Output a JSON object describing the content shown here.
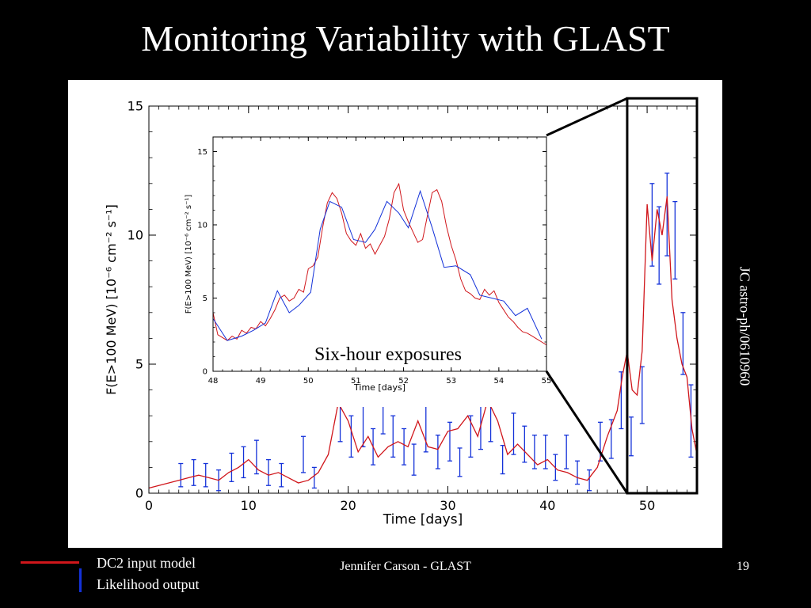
{
  "slide": {
    "title": "Monitoring Variability with GLAST",
    "side_reference": "JC astro-ph/0610960",
    "footer": "Jennifer Carson - GLAST",
    "slide_number": "19",
    "legend": [
      {
        "label": "DC2 input model",
        "color": "#d0161b"
      },
      {
        "label": "Likelihood output",
        "color": "#1432d9"
      }
    ]
  },
  "chart_data": [
    {
      "type": "line",
      "xlabel": "Time [days]",
      "ylabel": "F(E>100 MeV) [10⁻⁶ cm⁻² s⁻¹]",
      "xlim": [
        0,
        55
      ],
      "ylim": [
        0,
        15
      ],
      "xticks": [
        "0",
        "10",
        "20",
        "30",
        "40",
        "50"
      ],
      "yticks": [
        "0",
        "5",
        "10",
        "15"
      ],
      "series": [
        {
          "name": "DC2 input model",
          "color": "#d0161b",
          "x": [
            0,
            1,
            2,
            3,
            4,
            5,
            6,
            7,
            8,
            9,
            10,
            11,
            12,
            13,
            14,
            15,
            16,
            17,
            18,
            19,
            20,
            21,
            22,
            23,
            24,
            25,
            26,
            27,
            28,
            29,
            30,
            31,
            32,
            33,
            34,
            35,
            36,
            37,
            38,
            39,
            40,
            41,
            42,
            43,
            44,
            45,
            46,
            47,
            47.5,
            48,
            48.5,
            49,
            49.5,
            50,
            50.5,
            51,
            51.5,
            52,
            52.5,
            53,
            53.5,
            54,
            54.5,
            55
          ],
          "y": [
            0.2,
            0.3,
            0.4,
            0.5,
            0.6,
            0.7,
            0.6,
            0.5,
            0.8,
            1.0,
            1.3,
            0.9,
            0.7,
            0.8,
            0.6,
            0.4,
            0.5,
            0.8,
            1.5,
            3.5,
            2.8,
            1.6,
            2.2,
            1.4,
            1.8,
            2.0,
            1.8,
            2.8,
            1.8,
            1.7,
            2.4,
            2.5,
            3.0,
            2.2,
            3.6,
            2.8,
            1.5,
            1.9,
            1.5,
            1.1,
            1.3,
            0.9,
            0.8,
            0.6,
            0.5,
            1.0,
            2.2,
            3.2,
            4.5,
            5.5,
            4.0,
            3.8,
            5.5,
            11.2,
            9.0,
            11.0,
            10.0,
            11.5,
            7.5,
            6.0,
            5.0,
            4.5,
            2.5,
            1.5
          ]
        },
        {
          "name": "Likelihood output",
          "color": "#1432d9",
          "x": [
            3.2,
            4.5,
            5.7,
            7.0,
            8.3,
            9.5,
            10.8,
            12.0,
            13.3,
            15.5,
            16.6,
            19.2,
            20.3,
            21.5,
            22.5,
            23.5,
            24.5,
            25.6,
            26.6,
            27.8,
            29.0,
            30.2,
            31.2,
            32.3,
            33.3,
            34.3,
            35.5,
            36.6,
            37.7,
            38.7,
            39.8,
            40.8,
            41.9,
            43.0,
            44.2,
            45.3,
            46.4,
            47.4,
            48.4,
            49.5,
            50.5,
            51.2,
            52.0,
            52.8,
            53.6,
            54.4
          ],
          "y": [
            0.7,
            0.8,
            0.7,
            0.5,
            1.0,
            1.2,
            1.4,
            0.8,
            0.7,
            1.5,
            0.6,
            3.1,
            2.2,
            2.7,
            1.8,
            3.4,
            2.2,
            1.8,
            1.3,
            2.5,
            1.6,
            2.0,
            1.2,
            2.2,
            2.6,
            3.0,
            1.3,
            2.3,
            1.9,
            1.6,
            1.6,
            1.0,
            1.6,
            0.8,
            0.5,
            2.0,
            2.1,
            3.6,
            2.2,
            3.8,
            10.4,
            9.6,
            10.8,
            9.8,
            5.8,
            2.8
          ],
          "yerr": [
            0.45,
            0.5,
            0.45,
            0.4,
            0.55,
            0.6,
            0.65,
            0.5,
            0.45,
            0.7,
            0.4,
            1.1,
            0.8,
            0.9,
            0.7,
            1.1,
            0.8,
            0.7,
            0.6,
            0.9,
            0.65,
            0.75,
            0.55,
            0.8,
            0.9,
            1.0,
            0.55,
            0.8,
            0.7,
            0.65,
            0.65,
            0.5,
            0.65,
            0.45,
            0.4,
            0.75,
            0.75,
            1.1,
            0.75,
            1.1,
            1.6,
            1.5,
            1.6,
            1.5,
            1.2,
            1.4
          ]
        }
      ]
    },
    {
      "type": "line",
      "annotation": "Six-hour exposures",
      "xlabel": "Time [days]",
      "ylabel": "F(E>100 MeV) [10⁻⁶ cm⁻² s⁻¹]",
      "xlim": [
        48,
        55
      ],
      "ylim": [
        0,
        16
      ],
      "xticks": [
        "48",
        "49",
        "50",
        "51",
        "52",
        "53",
        "54",
        "55"
      ],
      "yticks": [
        "0",
        "5",
        "10",
        "15"
      ],
      "series": [
        {
          "name": "DC2 input model",
          "color": "#d0161b",
          "x": [
            48.0,
            48.1,
            48.2,
            48.3,
            48.4,
            48.5,
            48.6,
            48.7,
            48.8,
            48.9,
            49.0,
            49.1,
            49.2,
            49.3,
            49.4,
            49.5,
            49.6,
            49.7,
            49.8,
            49.9,
            50.0,
            50.1,
            50.2,
            50.3,
            50.4,
            50.5,
            50.6,
            50.7,
            50.8,
            50.9,
            51.0,
            51.1,
            51.2,
            51.3,
            51.4,
            51.5,
            51.6,
            51.7,
            51.8,
            51.9,
            52.0,
            52.1,
            52.2,
            52.3,
            52.4,
            52.5,
            52.6,
            52.7,
            52.8,
            52.9,
            53.0,
            53.1,
            53.2,
            53.3,
            53.4,
            53.5,
            53.6,
            53.7,
            53.8,
            53.9,
            54.0,
            54.1,
            54.2,
            54.3,
            54.4,
            54.5,
            54.6,
            54.7,
            54.8,
            54.9,
            55.0
          ],
          "y": [
            4.0,
            2.5,
            2.3,
            2.1,
            2.4,
            2.2,
            2.8,
            2.6,
            3.0,
            2.9,
            3.4,
            3.1,
            3.6,
            4.2,
            5.0,
            5.2,
            4.8,
            5.0,
            5.6,
            5.4,
            7.0,
            7.2,
            7.8,
            9.8,
            11.5,
            12.2,
            11.8,
            10.8,
            9.4,
            8.9,
            8.6,
            9.4,
            8.4,
            8.7,
            8.0,
            8.6,
            9.2,
            10.4,
            12.2,
            12.8,
            11.0,
            10.2,
            9.5,
            8.8,
            9.0,
            10.6,
            12.2,
            12.4,
            11.6,
            9.9,
            8.6,
            7.6,
            6.3,
            5.5,
            5.3,
            5.0,
            4.9,
            5.6,
            5.2,
            5.5,
            4.7,
            4.2,
            3.7,
            3.4,
            3.0,
            2.7,
            2.6,
            2.4,
            2.2,
            2.0,
            1.8
          ]
        },
        {
          "name": "Likelihood output",
          "color": "#1432d9",
          "x": [
            48.0,
            48.3,
            48.6,
            48.85,
            49.1,
            49.35,
            49.6,
            49.8,
            50.05,
            50.25,
            50.45,
            50.7,
            50.95,
            51.2,
            51.4,
            51.65,
            51.9,
            52.1,
            52.35,
            52.6,
            52.85,
            53.1,
            53.4,
            53.6,
            53.85,
            54.1,
            54.35,
            54.6,
            54.9
          ],
          "y": [
            3.6,
            2.1,
            2.4,
            2.8,
            3.3,
            5.5,
            4.0,
            4.5,
            5.4,
            9.7,
            11.6,
            11.2,
            9.0,
            8.8,
            9.7,
            11.6,
            10.8,
            9.8,
            12.3,
            9.8,
            7.1,
            7.2,
            6.6,
            5.2,
            5.0,
            4.8,
            3.8,
            4.3,
            2.2
          ]
        }
      ]
    }
  ]
}
